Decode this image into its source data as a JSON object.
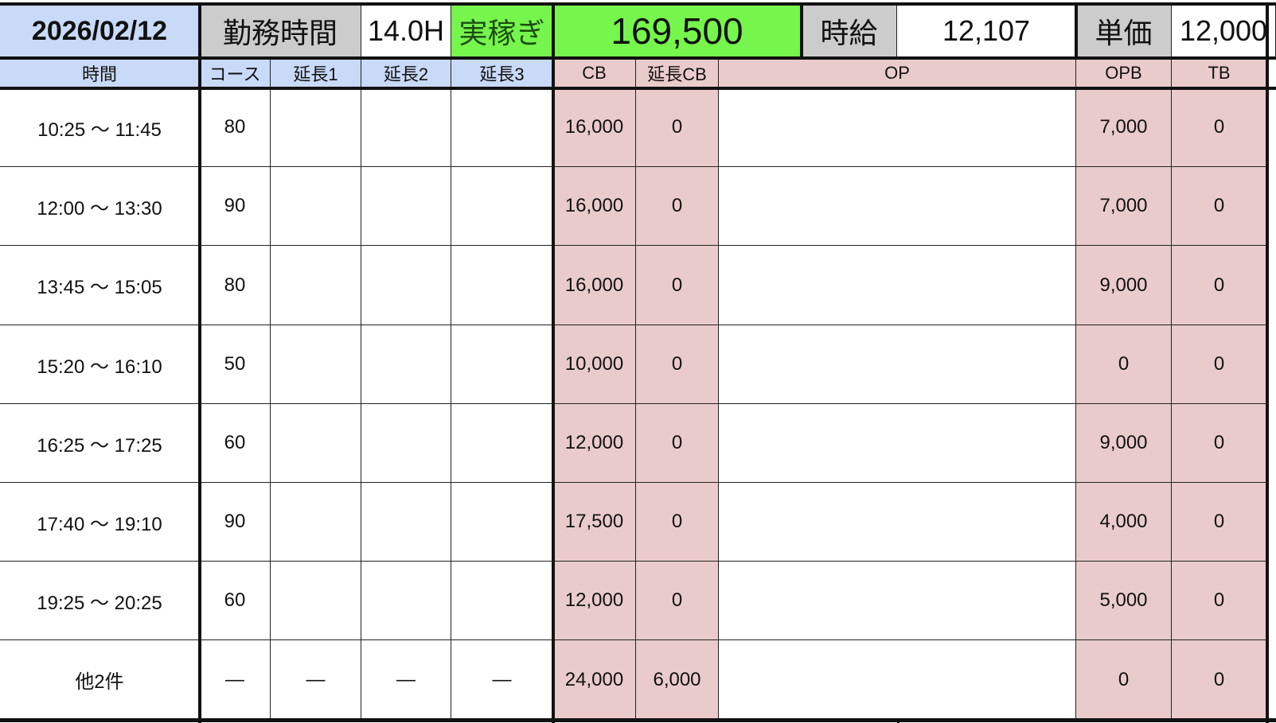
{
  "summary": {
    "date": "2026/02/12",
    "work_hours_label": "勤務時間",
    "work_hours": "14.0H",
    "earnings_label": "実稼ぎ",
    "earnings": "169,500",
    "hourly_label": "時給",
    "hourly": "12,107",
    "unit_price_label": "単価",
    "unit_price": "12,000"
  },
  "headers": [
    "時間",
    "コース",
    "延長1",
    "延長2",
    "延長3",
    "CB",
    "延長CB",
    "OP",
    "OPB",
    "TB"
  ],
  "rows": [
    [
      "10:25 〜 11:45",
      "80",
      "",
      "",
      "",
      "16,000",
      "0",
      "",
      "7,000",
      "0"
    ],
    [
      "12:00 〜 13:30",
      "90",
      "",
      "",
      "",
      "16,000",
      "0",
      "",
      "7,000",
      "0"
    ],
    [
      "13:45 〜 15:05",
      "80",
      "",
      "",
      "",
      "16,000",
      "0",
      "",
      "9,000",
      "0"
    ],
    [
      "15:20 〜 16:10",
      "50",
      "",
      "",
      "",
      "10,000",
      "0",
      "",
      "0",
      "0"
    ],
    [
      "16:25 〜 17:25",
      "60",
      "",
      "",
      "",
      "12,000",
      "0",
      "",
      "9,000",
      "0"
    ],
    [
      "17:40 〜 19:10",
      "90",
      "",
      "",
      "",
      "17,500",
      "0",
      "",
      "4,000",
      "0"
    ],
    [
      "19:25 〜 20:25",
      "60",
      "",
      "",
      "",
      "12,000",
      "0",
      "",
      "5,000",
      "0"
    ],
    [
      "他2件",
      "—",
      "—",
      "—",
      "—",
      "24,000",
      "6,000",
      "",
      "0",
      "0"
    ]
  ],
  "colors": {
    "header_blue": "#c9daf8",
    "label_gray": "#cccccc",
    "earnings_green": "#76f54d",
    "money_pink": "#eacbcb"
  }
}
